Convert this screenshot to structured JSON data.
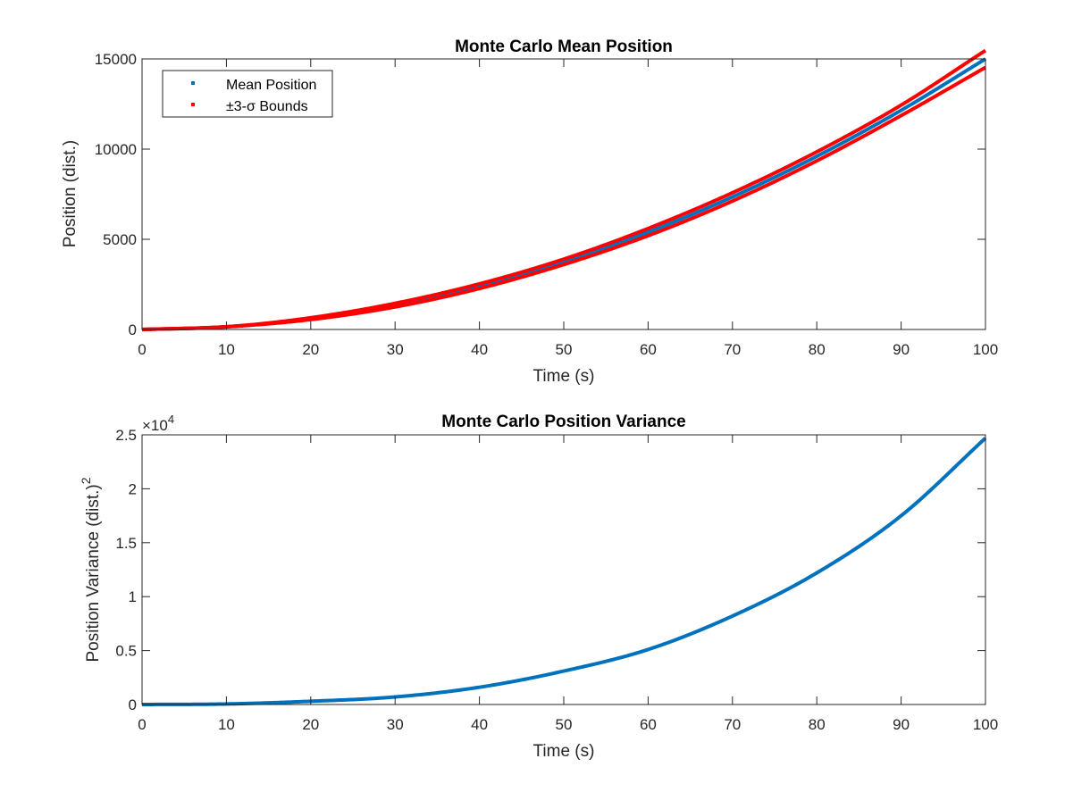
{
  "chart_data": [
    {
      "type": "line",
      "title": "Monte Carlo Mean Position",
      "xlabel": "Time (s)",
      "ylabel": "Position (dist.)",
      "xlim": [
        0,
        100
      ],
      "ylim": [
        0,
        15000
      ],
      "xticks": [
        "0",
        "10",
        "20",
        "30",
        "40",
        "50",
        "60",
        "70",
        "80",
        "90",
        "100"
      ],
      "yticks": [
        "0",
        "5000",
        "10000",
        "15000"
      ],
      "grid": false,
      "legend_position": "top-left",
      "x": [
        0,
        10,
        20,
        30,
        40,
        50,
        60,
        70,
        80,
        90,
        100
      ],
      "series": [
        {
          "name": "Mean Position",
          "color": "#0072BD",
          "values": [
            0,
            150,
            600,
            1350,
            2400,
            3750,
            5400,
            7350,
            9600,
            12150,
            15000
          ]
        },
        {
          "name": "±3-σ Bounds",
          "color": "#FF0000",
          "values": [
            0,
            150,
            650,
            1450,
            2530,
            3900,
            5600,
            7580,
            9850,
            12440,
            15470
          ]
        },
        {
          "name": "±3-σ Bounds",
          "color": "#FF0000",
          "values": [
            0,
            150,
            550,
            1250,
            2270,
            3600,
            5200,
            7120,
            9350,
            11860,
            14530
          ]
        }
      ]
    },
    {
      "type": "line",
      "title": "Monte Carlo Position Variance",
      "xlabel": "Time (s)",
      "ylabel": "Position Variance (dist.)",
      "ylabel_superscript": "2",
      "exponent_label": "×10",
      "exponent_power": "4",
      "xlim": [
        0,
        100
      ],
      "ylim": [
        0,
        2.5
      ],
      "xticks": [
        "0",
        "10",
        "20",
        "30",
        "40",
        "50",
        "60",
        "70",
        "80",
        "90",
        "100"
      ],
      "yticks": [
        "0",
        "0.5",
        "1",
        "1.5",
        "2",
        "2.5"
      ],
      "grid": false,
      "x": [
        0,
        10,
        20,
        30,
        40,
        50,
        60,
        70,
        80,
        90,
        100
      ],
      "series": [
        {
          "color": "#0072BD",
          "values": [
            0,
            0.005,
            0.03,
            0.07,
            0.16,
            0.31,
            0.51,
            0.82,
            1.22,
            1.75,
            2.47
          ]
        }
      ]
    }
  ]
}
